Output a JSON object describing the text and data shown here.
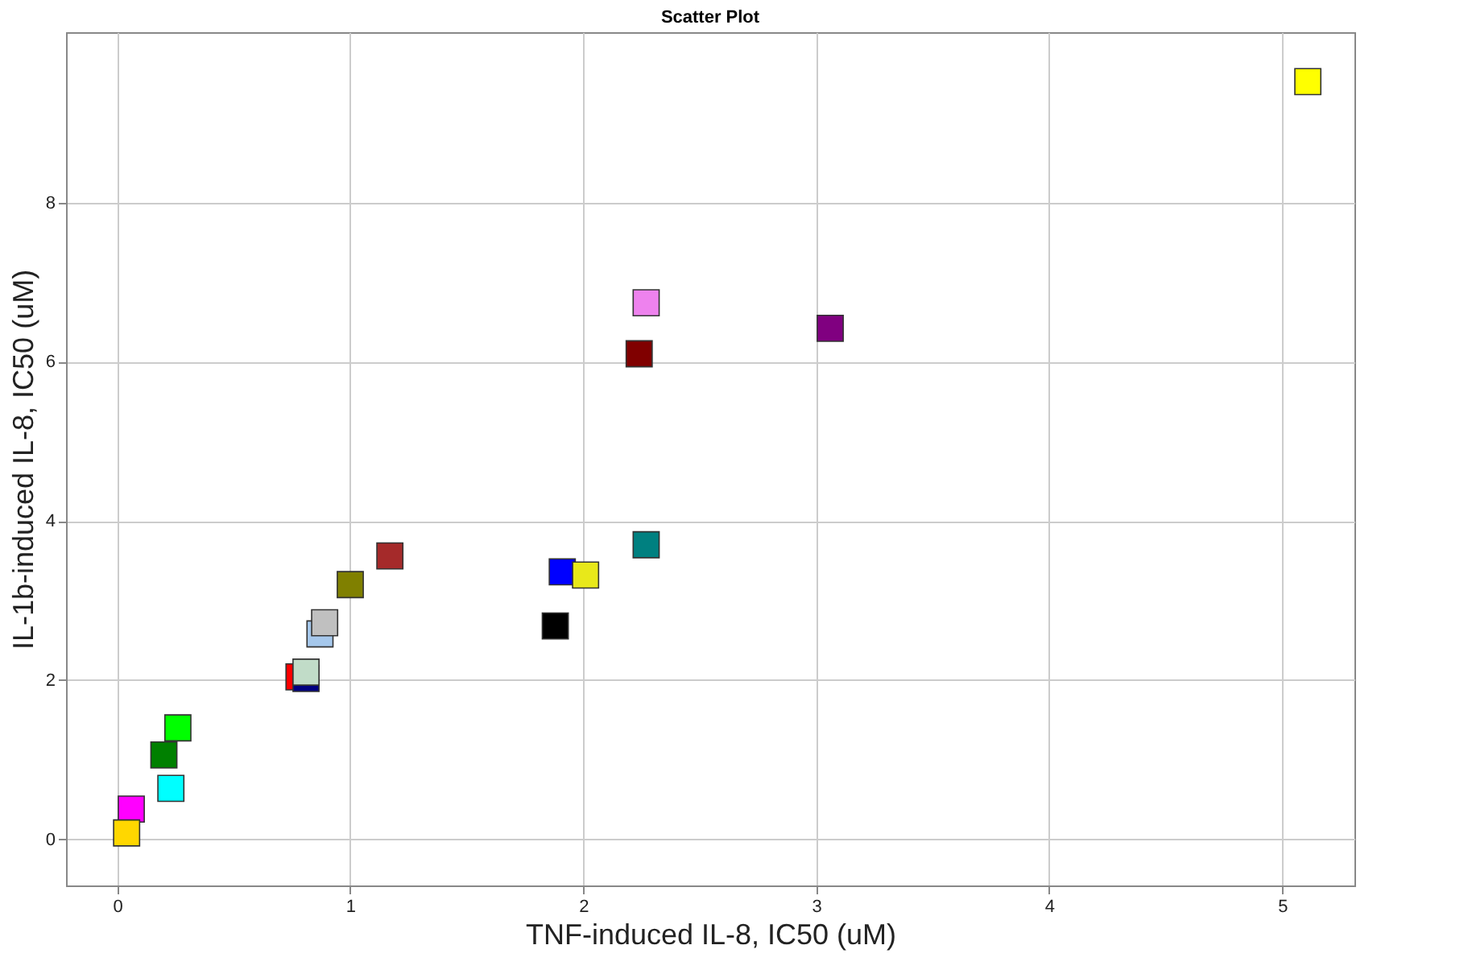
{
  "chart_data": {
    "type": "scatter",
    "title": "Scatter Plot",
    "xlabel": "TNF-induced IL-8, IC50 (uM)",
    "ylabel": "IL-1b-induced IL-8, IC50 (uM)",
    "x": [
      5.11,
      2.27,
      3.06,
      2.24,
      2.27,
      1.91,
      2.01,
      1.88,
      1.17,
      1.0,
      0.87,
      0.89,
      0.78,
      0.81,
      0.81,
      0.26,
      0.2,
      0.23,
      0.06,
      0.04
    ],
    "values": [
      9.52,
      6.74,
      6.42,
      6.1,
      3.7,
      3.36,
      3.32,
      2.68,
      3.56,
      3.2,
      2.58,
      2.72,
      2.04,
      2.02,
      2.1,
      1.4,
      1.06,
      0.64,
      0.38,
      0.08
    ],
    "colors": [
      "#ffff00",
      "#ee82ee",
      "#800080",
      "#800000",
      "#008080",
      "#0000ff",
      "#e8e81a",
      "#000000",
      "#a52a2a",
      "#808000",
      "#a6c8ec",
      "#c0c0c0",
      "#ff0000",
      "#000080",
      "#c1dcc8",
      "#00ff00",
      "#008000",
      "#00ffff",
      "#ff00ff",
      "#ffd700"
    ],
    "marker": "square",
    "xlim": [
      -0.22,
      5.31
    ],
    "ylim": [
      -0.58,
      10.14
    ],
    "xticks": [
      0,
      1,
      2,
      3,
      4,
      5
    ],
    "yticks": [
      0,
      2,
      4,
      6,
      8
    ],
    "grid": true
  }
}
